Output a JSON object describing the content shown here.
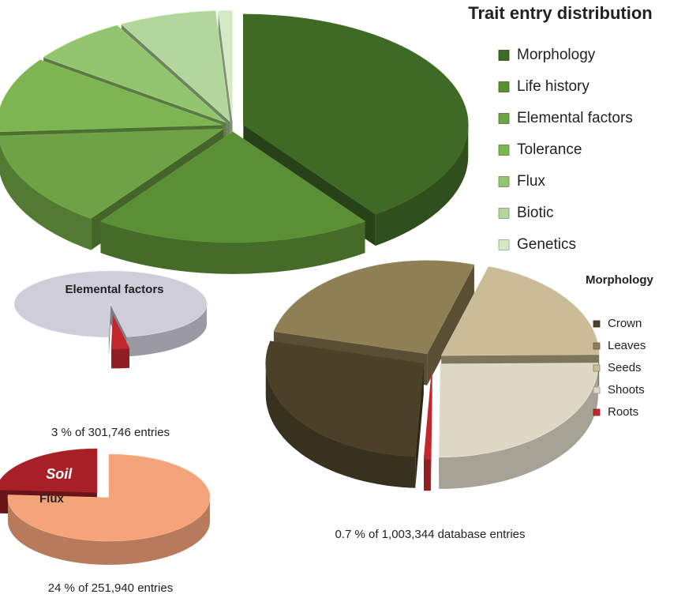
{
  "chart_data": [
    {
      "type": "pie3d",
      "title": "Trait entry distribution",
      "categories": [
        "Morphology",
        "Life history",
        "Elemental factors",
        "Tolerance",
        "Flux",
        "Biotic",
        "Genetics"
      ],
      "values": [
        40,
        20,
        14,
        11,
        7,
        7,
        1
      ],
      "colors": [
        "#3f6a26",
        "#5b8f35",
        "#6ea244",
        "#7cb552",
        "#93c46f",
        "#b3d69c",
        "#d3e9c6"
      ],
      "legend": "right"
    },
    {
      "type": "pie3d",
      "title": "Elemental factors",
      "categories": [
        null,
        null
      ],
      "values": [
        97,
        3
      ],
      "colors": [
        "#cfcdda",
        "#c0282d"
      ],
      "annotation": "3 % of 301,746 entries"
    },
    {
      "type": "pie3d",
      "title": "Flux",
      "categories": [
        null,
        "Soil"
      ],
      "values": [
        76,
        24
      ],
      "colors": [
        "#f4a47a",
        "#a82027"
      ],
      "annotation": "24 % of 251,940 entries"
    },
    {
      "type": "pie3d",
      "title": "Morphology",
      "categories": [
        "Crown",
        "Leaves",
        "Seeds",
        "Shoots",
        "Roots"
      ],
      "values": [
        28,
        26,
        20,
        25.3,
        0.7
      ],
      "colors": [
        "#4a4128",
        "#8f7f55",
        "#c9bc97",
        "#ddd8c6",
        "#c0282d"
      ],
      "legend": "right",
      "annotation": "0.7 % of 1,003,344 database entries"
    }
  ]
}
